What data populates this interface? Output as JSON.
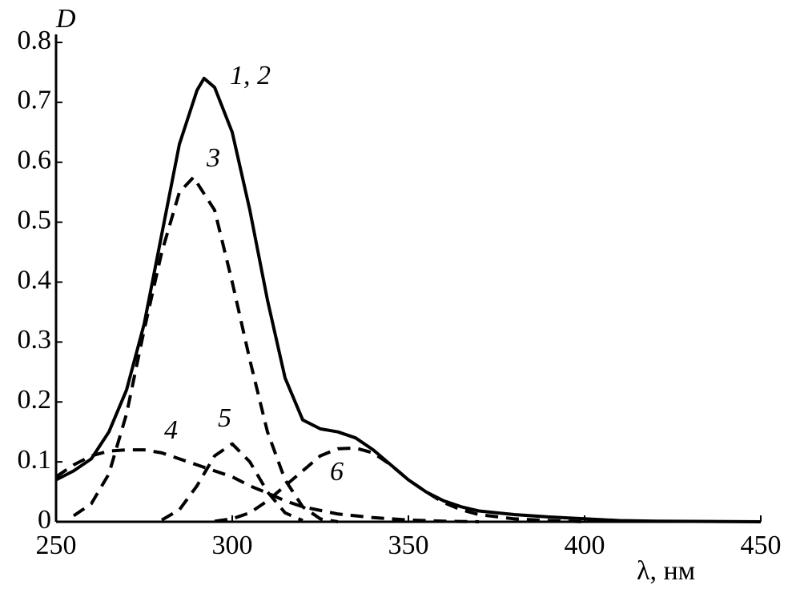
{
  "chart_data": {
    "type": "line",
    "y_label": "D",
    "x_label": "λ, нм",
    "xlim": [
      250,
      450
    ],
    "ylim": [
      0,
      0.8
    ],
    "xticks": [
      250,
      300,
      350,
      400,
      450
    ],
    "yticks": [
      0,
      0.1,
      0.2,
      0.3,
      0.4,
      0.5,
      0.6,
      0.7,
      0.8
    ],
    "series": [
      {
        "name": "1, 2",
        "color": "#000000",
        "dash": false,
        "x": [
          250,
          255,
          260,
          265,
          270,
          275,
          280,
          285,
          290,
          292,
          295,
          300,
          305,
          310,
          315,
          320,
          325,
          330,
          335,
          340,
          345,
          350,
          355,
          360,
          365,
          370,
          380,
          390,
          400,
          410,
          420,
          450
        ],
        "values": [
          0.07,
          0.085,
          0.105,
          0.15,
          0.22,
          0.33,
          0.48,
          0.63,
          0.72,
          0.74,
          0.725,
          0.65,
          0.52,
          0.37,
          0.24,
          0.17,
          0.155,
          0.15,
          0.14,
          0.12,
          0.095,
          0.07,
          0.05,
          0.035,
          0.025,
          0.018,
          0.012,
          0.008,
          0.005,
          0.002,
          0.001,
          0
        ]
      },
      {
        "name": "3",
        "color": "#000000",
        "dash": true,
        "x": [
          255,
          260,
          265,
          270,
          275,
          280,
          285,
          289,
          295,
          300,
          305,
          310,
          315,
          320,
          325,
          330
        ],
        "values": [
          0.01,
          0.03,
          0.08,
          0.18,
          0.32,
          0.45,
          0.55,
          0.575,
          0.52,
          0.4,
          0.27,
          0.15,
          0.07,
          0.025,
          0.005,
          0
        ]
      },
      {
        "name": "4",
        "color": "#000000",
        "dash": true,
        "x": [
          250,
          255,
          260,
          265,
          270,
          275,
          280,
          285,
          290,
          295,
          300,
          305,
          310,
          315,
          320,
          330,
          340,
          350,
          360,
          370
        ],
        "values": [
          0.075,
          0.095,
          0.11,
          0.118,
          0.12,
          0.12,
          0.115,
          0.105,
          0.095,
          0.085,
          0.075,
          0.06,
          0.048,
          0.035,
          0.025,
          0.013,
          0.007,
          0.003,
          0.001,
          0
        ]
      },
      {
        "name": "5",
        "color": "#000000",
        "dash": true,
        "x": [
          280,
          285,
          290,
          295,
          300,
          305,
          310,
          315,
          320
        ],
        "values": [
          0.003,
          0.02,
          0.06,
          0.11,
          0.13,
          0.1,
          0.05,
          0.015,
          0.002
        ]
      },
      {
        "name": "6",
        "color": "#000000",
        "dash": true,
        "x": [
          295,
          300,
          305,
          310,
          315,
          320,
          325,
          330,
          335,
          340,
          345,
          350,
          355,
          360,
          365,
          370,
          380,
          390,
          400
        ],
        "values": [
          0.001,
          0.005,
          0.015,
          0.035,
          0.06,
          0.085,
          0.11,
          0.122,
          0.123,
          0.115,
          0.095,
          0.07,
          0.05,
          0.032,
          0.02,
          0.012,
          0.005,
          0.002,
          0
        ]
      }
    ]
  }
}
